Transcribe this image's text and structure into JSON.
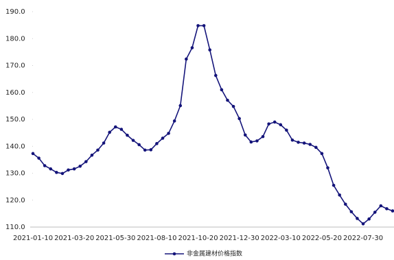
{
  "chart_data": {
    "type": "line",
    "categories": [
      "2021-01-10",
      null,
      null,
      null,
      null,
      null,
      null,
      "2021-03-20",
      null,
      null,
      null,
      null,
      null,
      null,
      "2021-05-30",
      null,
      null,
      null,
      null,
      null,
      null,
      "2021-08-10",
      null,
      null,
      null,
      null,
      null,
      null,
      "2021-10-20",
      null,
      null,
      null,
      null,
      null,
      null,
      "2021-12-30",
      null,
      null,
      null,
      null,
      null,
      null,
      "2022-03-10",
      null,
      null,
      null,
      null,
      null,
      null,
      "2022-05-20",
      null,
      null,
      null,
      null,
      null,
      null,
      "2022-07-30",
      null,
      null,
      null,
      null,
      null
    ],
    "series": [
      {
        "name": "非金属建材价格指数",
        "color": "#14147a",
        "values": [
          137.3,
          135.6,
          132.8,
          131.6,
          130.3,
          129.9,
          131.2,
          131.6,
          132.6,
          134.3,
          136.7,
          138.6,
          141.2,
          145.2,
          147.2,
          146.3,
          144.1,
          142.2,
          140.6,
          138.6,
          138.7,
          141.0,
          143.0,
          144.8,
          149.4,
          155.1,
          172.4,
          176.6,
          184.8,
          184.8,
          175.8,
          166.3,
          161.0,
          157.1,
          154.8,
          150.3,
          144.2,
          141.6,
          142.0,
          143.6,
          148.3,
          149.0,
          148.0,
          146.0,
          142.3,
          141.5,
          141.2,
          140.7,
          139.6,
          137.3,
          132.0,
          125.5,
          121.9,
          118.5,
          115.7,
          113.2,
          111.2,
          113.0,
          115.5,
          117.9,
          116.8,
          116.0
        ]
      }
    ],
    "ylim": [
      110,
      190
    ],
    "yticks": [
      {
        "value": 110,
        "label": "110.0"
      },
      {
        "value": 120,
        "label": "120.0"
      },
      {
        "value": 130,
        "label": "130.0"
      },
      {
        "value": 140,
        "label": "140.0"
      },
      {
        "value": 150,
        "label": "150.0"
      },
      {
        "value": 160,
        "label": "160.0"
      },
      {
        "value": 170,
        "label": "170.0"
      },
      {
        "value": 180,
        "label": "180.0"
      },
      {
        "value": 190,
        "label": "190.0"
      }
    ],
    "grid": false,
    "legend": "bottom"
  }
}
